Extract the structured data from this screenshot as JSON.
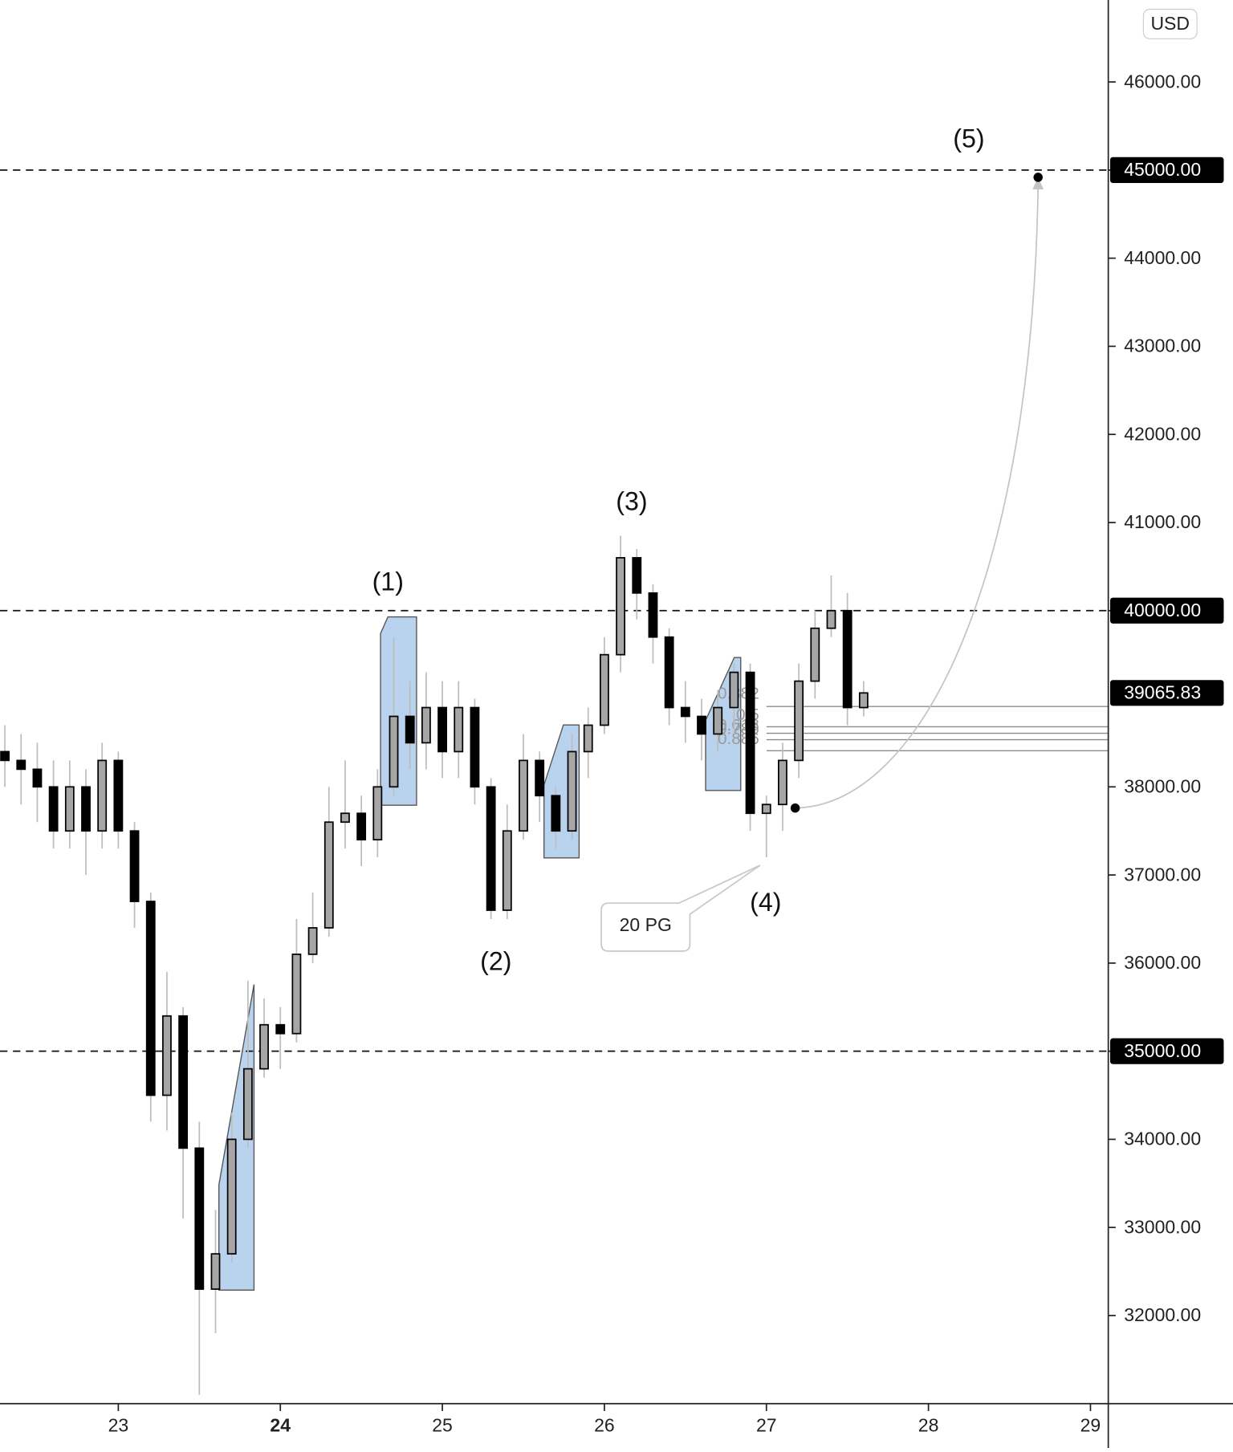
{
  "chart_data": {
    "type": "candlestick",
    "currency": "USD",
    "x": [
      22.3,
      22.4,
      22.5,
      22.6,
      22.7,
      22.8,
      22.9,
      23.0,
      23.1,
      23.2,
      23.3,
      23.4,
      23.5,
      23.6,
      23.7,
      23.8,
      23.9,
      24.0,
      24.1,
      24.2,
      24.3,
      24.4,
      24.5,
      24.6,
      24.7,
      24.8,
      24.9,
      25.0,
      25.1,
      25.2,
      25.3,
      25.4,
      25.5,
      25.6,
      25.7,
      25.8,
      25.9,
      26.0,
      26.1,
      26.2,
      26.3,
      26.4,
      26.5,
      26.6,
      26.7,
      26.8,
      26.9,
      27.0,
      27.1,
      27.2,
      27.3,
      27.4,
      27.5,
      27.6
    ],
    "open": [
      38400,
      38300,
      38200,
      38000,
      37500,
      38000,
      37500,
      38300,
      37500,
      36700,
      34500,
      35400,
      33900,
      32300,
      32700,
      34000,
      34800,
      35300,
      35200,
      36100,
      36400,
      37600,
      37700,
      37400,
      38000,
      38800,
      38500,
      38900,
      38400,
      38900,
      38000,
      36600,
      37500,
      38300,
      37900,
      37500,
      38400,
      38700,
      39500,
      40600,
      40200,
      39700,
      38900,
      38800,
      38600,
      38900,
      39300,
      37700,
      37800,
      38300,
      39200,
      39800,
      40000,
      38900
    ],
    "high": [
      38700,
      38600,
      38500,
      38300,
      38300,
      38200,
      38500,
      38400,
      37600,
      36800,
      35900,
      35500,
      34200,
      33200,
      34300,
      35800,
      35600,
      35500,
      36500,
      36800,
      38000,
      38300,
      37900,
      38200,
      39700,
      39200,
      39300,
      39200,
      39200,
      39000,
      38100,
      37800,
      38600,
      38400,
      38000,
      38600,
      38900,
      39700,
      40850,
      40700,
      40300,
      39800,
      39200,
      39000,
      39100,
      39400,
      39400,
      37900,
      38500,
      39400,
      40000,
      40400,
      40200,
      39200
    ],
    "low": [
      38000,
      37800,
      37600,
      37300,
      37300,
      37000,
      37300,
      37300,
      36400,
      34200,
      34100,
      33100,
      31100,
      31800,
      32600,
      33900,
      34700,
      34800,
      35100,
      36000,
      36300,
      37300,
      37100,
      37200,
      37900,
      38200,
      38200,
      38100,
      38100,
      37800,
      36500,
      36500,
      37400,
      37600,
      37300,
      37400,
      38100,
      38600,
      39300,
      39900,
      39400,
      38700,
      38500,
      38300,
      38400,
      38600,
      37500,
      37200,
      37500,
      38100,
      39000,
      39700,
      38700,
      38800
    ],
    "close": [
      38300,
      38200,
      38000,
      37500,
      38000,
      37500,
      38300,
      37500,
      36700,
      34500,
      35400,
      33900,
      32300,
      32700,
      34000,
      34800,
      35300,
      35200,
      36100,
      36400,
      37600,
      37700,
      37400,
      38000,
      38800,
      38500,
      38900,
      38400,
      38900,
      38000,
      36600,
      37500,
      38300,
      37900,
      37500,
      38400,
      38700,
      39500,
      40600,
      40200,
      39700,
      38900,
      38800,
      38600,
      38900,
      39300,
      37700,
      37800,
      38300,
      39200,
      39800,
      40000,
      38900,
      39066
    ],
    "up_color": "#a6a6a6",
    "down_color": "#000000",
    "xlim": [
      22.27,
      29.11
    ],
    "xticks": [
      23,
      24,
      25,
      26,
      27,
      28,
      29
    ],
    "xtick_bold": [
      24
    ],
    "ylim": [
      31000,
      46930
    ],
    "yticks": [
      {
        "value": 32000,
        "label": "32000.00"
      },
      {
        "value": 33000,
        "label": "33000.00"
      },
      {
        "value": 34000,
        "label": "34000.00"
      },
      {
        "value": 35000,
        "label": "35000.00"
      },
      {
        "value": 36000,
        "label": "36000.00"
      },
      {
        "value": 37000,
        "label": "37000.00"
      },
      {
        "value": 38000,
        "label": "38000.00"
      },
      {
        "value": 40000,
        "label": "40000.00"
      },
      {
        "value": 41000,
        "label": "41000.00"
      },
      {
        "value": 42000,
        "label": "42000.00"
      },
      {
        "value": 43000,
        "label": "43000.00"
      },
      {
        "value": 44000,
        "label": "44000.00"
      },
      {
        "value": 45000,
        "label": "45000.00"
      },
      {
        "value": 46000,
        "label": "46000.00"
      }
    ],
    "hlines": [
      45000,
      40000,
      35000
    ],
    "last": {
      "value": 39065.83,
      "label": "39065.83"
    },
    "waves": [
      "(1)",
      "(2)",
      "(3)",
      "(4)",
      "(5)"
    ],
    "fib_labels": [
      "0.382",
      "0.5",
      "0.618",
      "0.786",
      "0.886"
    ],
    "callout": "20 PG"
  }
}
